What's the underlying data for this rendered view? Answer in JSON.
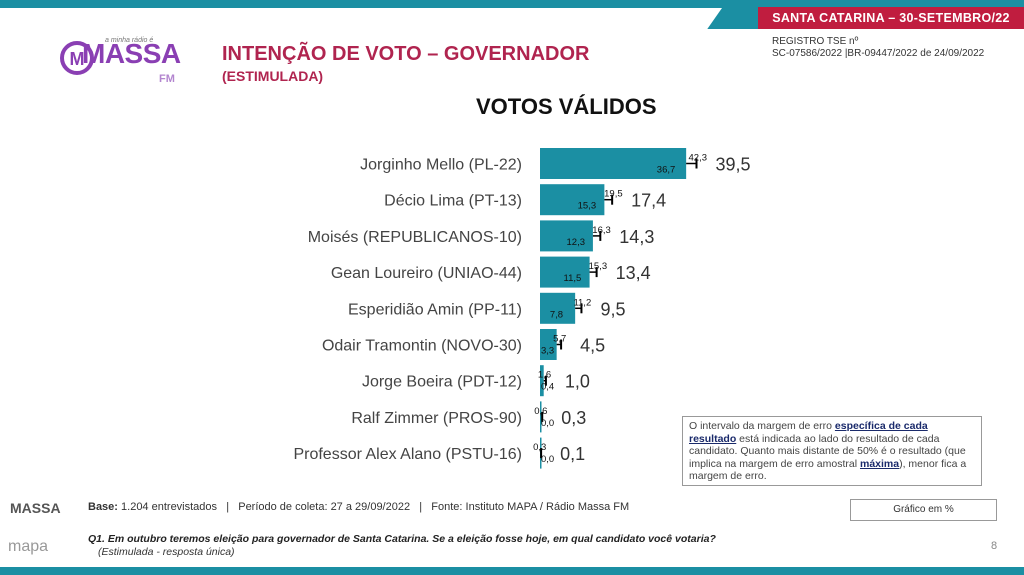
{
  "banner": {
    "text": "SANTA CATARINA – 30-SETEMBRO/22"
  },
  "logo": {
    "small_text": "a minha rádio é",
    "brand": "MASSA",
    "suffix": "FM"
  },
  "header": {
    "title": "INTENÇÃO DE VOTO – GOVERNADOR",
    "subtitle": "(ESTIMULADA)"
  },
  "registro": {
    "line1": "REGISTRO  TSE nº",
    "line2": "SC-07586/2022 |BR-09447/2022 de 24/09/2022"
  },
  "section_title": "VOTOS VÁLIDOS",
  "colors": {
    "bar": "#1b8fa3",
    "title": "#b0244f",
    "banner": "#c01d3f"
  },
  "chart_data": {
    "type": "bar",
    "orientation": "horizontal",
    "categories": [
      "Jorginho Mello (PL-22)",
      "Décio Lima (PT-13)",
      "Moisés (REPUBLICANOS-10)",
      "Gean Loureiro (UNIAO-44)",
      "Esperidião Amin (PP-11)",
      "Odair Tramontin (NOVO-30)",
      "Jorge Boeira (PDT-12)",
      "Ralf Zimmer (PROS-90)",
      "Professor Alex Alano (PSTU-16)"
    ],
    "values": [
      39.5,
      17.4,
      14.3,
      13.4,
      9.5,
      4.5,
      1.0,
      0.3,
      0.1
    ],
    "lower": [
      36.7,
      15.3,
      12.3,
      11.5,
      7.8,
      3.3,
      0.4,
      0.0,
      0.0
    ],
    "upper": [
      42.3,
      19.5,
      16.3,
      15.3,
      11.2,
      5.7,
      1.6,
      0.6,
      0.3
    ],
    "value_labels": [
      "39,5",
      "17,4",
      "14,3",
      "13,4",
      "9,5",
      "4,5",
      "1,0",
      "0,3",
      "0,1"
    ],
    "lower_labels": [
      "36,7",
      "15,3",
      "12,3",
      "11,5",
      "7,8",
      "3,3",
      "0,4",
      "0,0",
      "0,0"
    ],
    "upper_labels": [
      "42,3",
      "19,5",
      "16,3",
      "15,3",
      "11,2",
      "5,7",
      "1,6",
      "0,6",
      "0,3"
    ]
  },
  "note": {
    "part1": "O intervalo da margem de erro ",
    "bold1": "específica de cada resultado",
    "part2": " está indicada ao lado do resultado de cada candidato. Quanto mais distante de 50% é o resultado (que implica na margem de erro amostral ",
    "bold2": "máxima",
    "part3": "), menor fica a margem de erro."
  },
  "legend_label": "Gráfico em %",
  "footer": {
    "base_label": "Base:",
    "base_text": " 1.204 entrevistados   |   Período de coleta: 27 a 29/09/2022   |   Fonte: Instituto MAPA / Rádio Massa FM",
    "question": "Q1. Em outubro teremos eleição para governador de Santa Catarina. Se a eleição fosse hoje, em qual candidato você votaria?",
    "question_sub": "(Estimulada - resposta única)",
    "logo1": "MASSA",
    "logo2": "mapa"
  },
  "page_number": "8"
}
